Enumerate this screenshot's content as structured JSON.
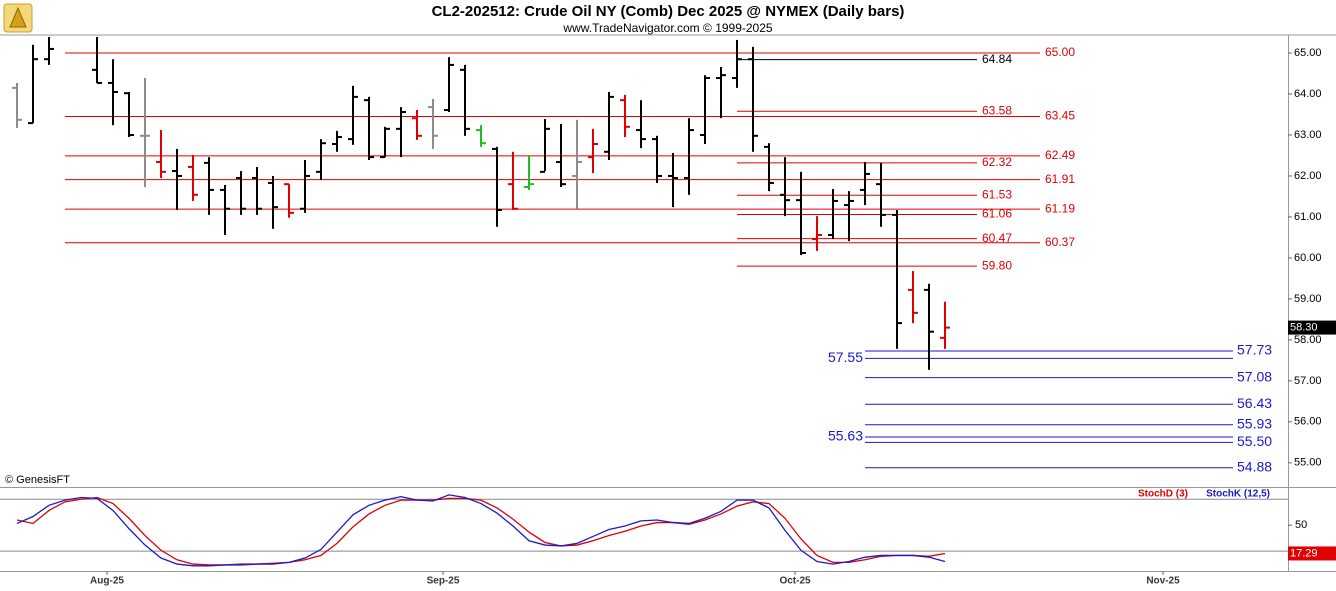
{
  "chart_data": [
    {
      "type": "ohlc",
      "title": "CL2-202512:  Crude Oil NY (Comb) Dec 2025 @ NYMEX  (Daily bars)",
      "subtitle": "www.TradeNavigator.com © 1999-2025",
      "source": "© GenesisFT",
      "xlim": [
        -1.0625,
        79.4375
      ],
      "ylim": [
        54.41,
        65.44
      ],
      "yticks": [
        {
          "value": 55,
          "label": "55.00"
        },
        {
          "value": 56,
          "label": "56.00"
        },
        {
          "value": 57,
          "label": "57.00"
        },
        {
          "value": 58,
          "label": "58.00"
        },
        {
          "value": 59,
          "label": "59.00"
        },
        {
          "value": 60,
          "label": "60.00"
        },
        {
          "value": 61,
          "label": "61.00"
        },
        {
          "value": 62,
          "label": "62.00"
        },
        {
          "value": 63,
          "label": "63.00"
        },
        {
          "value": 64,
          "label": "64.00"
        },
        {
          "value": 65,
          "label": "65.00"
        }
      ],
      "x": [
        0,
        1,
        2,
        5,
        6,
        7,
        8,
        9,
        10,
        11,
        12,
        13,
        14,
        15,
        16,
        17,
        18,
        19,
        20,
        21,
        22,
        23,
        24,
        25,
        26,
        27,
        28,
        29,
        30,
        31,
        32,
        33,
        34,
        35,
        36,
        37,
        38,
        39,
        40,
        41,
        42,
        43,
        44,
        45,
        46,
        47,
        48,
        49,
        50,
        51,
        52,
        53,
        54,
        55,
        56,
        57,
        58
      ],
      "open": [
        64.15,
        63.29,
        64.85,
        64.59,
        64.27,
        64.02,
        62.98,
        62.34,
        62.12,
        62.22,
        62.32,
        61.66,
        61.95,
        61.95,
        61.83,
        61.8,
        61.2,
        62.1,
        62.78,
        62.9,
        63.85,
        62.46,
        63.15,
        63.41,
        63.68,
        63.61,
        64.59,
        63.12,
        62.66,
        61.8,
        61.73,
        62.1,
        62.34,
        62.0,
        62.46,
        62.59,
        63.85,
        63.12,
        62.9,
        62.0,
        61.95,
        63.0,
        64.39,
        64.39,
        64.85,
        62.71,
        61.54,
        61.41,
        60.46,
        60.56,
        61.29,
        61.66,
        61.8,
        61.05,
        59.22,
        59.22,
        58.05
      ],
      "high": [
        64.27,
        65.2,
        65.39,
        65.39,
        64.85,
        64.05,
        64.39,
        63.12,
        62.66,
        62.51,
        62.46,
        61.78,
        62.12,
        62.22,
        62.0,
        61.8,
        62.39,
        62.9,
        63.1,
        64.2,
        63.93,
        63.2,
        63.68,
        63.61,
        63.88,
        64.9,
        64.71,
        63.24,
        62.71,
        62.59,
        62.51,
        63.39,
        63.27,
        63.37,
        63.15,
        64.05,
        63.98,
        63.85,
        62.98,
        62.56,
        63.41,
        64.46,
        64.66,
        65.32,
        65.15,
        62.8,
        62.46,
        62.1,
        61.02,
        61.68,
        61.63,
        62.34,
        62.32,
        61.17,
        59.68,
        59.37,
        58.93
      ],
      "low": [
        63.17,
        63.29,
        64.71,
        64.27,
        63.24,
        62.95,
        61.73,
        61.95,
        61.17,
        61.39,
        61.05,
        60.56,
        61.05,
        61.05,
        60.71,
        60.98,
        61.1,
        61.9,
        62.59,
        62.76,
        62.39,
        62.46,
        62.46,
        62.88,
        62.66,
        63.56,
        62.98,
        62.71,
        60.76,
        61.17,
        61.66,
        62.12,
        61.73,
        61.2,
        62.07,
        62.39,
        62.95,
        62.68,
        61.83,
        61.24,
        61.54,
        62.78,
        63.41,
        64.15,
        62.59,
        61.63,
        61.02,
        60.07,
        60.17,
        60.46,
        60.41,
        61.29,
        60.76,
        57.78,
        58.41,
        57.27,
        57.78
      ],
      "close": [
        63.37,
        64.85,
        65.1,
        64.27,
        64.05,
        63.0,
        62.98,
        62.1,
        62.0,
        61.54,
        61.66,
        61.2,
        61.2,
        61.2,
        61.24,
        61.1,
        62.0,
        62.8,
        62.95,
        63.93,
        62.46,
        63.15,
        63.56,
        62.98,
        62.98,
        64.71,
        63.15,
        62.8,
        61.17,
        61.2,
        61.8,
        63.15,
        61.8,
        62.34,
        62.78,
        63.93,
        63.2,
        62.9,
        62.0,
        61.95,
        63.12,
        64.39,
        64.46,
        64.85,
        62.98,
        61.83,
        61.41,
        60.12,
        60.56,
        61.39,
        61.39,
        62.05,
        61.05,
        58.41,
        58.66,
        58.2,
        58.3
      ],
      "bar_colors": [
        "#8c8c8c",
        "#000000",
        "#000000",
        "#000000",
        "#000000",
        "#000000",
        "#8c8c8c",
        "#e00000",
        "#000000",
        "#e00000",
        "#000000",
        "#000000",
        "#000000",
        "#000000",
        "#000000",
        "#e00000",
        "#000000",
        "#000000",
        "#000000",
        "#000000",
        "#000000",
        "#000000",
        "#000000",
        "#e00000",
        "#8c8c8c",
        "#000000",
        "#000000",
        "#22bb22",
        "#000000",
        "#e00000",
        "#22bb22",
        "#000000",
        "#000000",
        "#8c8c8c",
        "#e00000",
        "#000000",
        "#e00000",
        "#000000",
        "#000000",
        "#000000",
        "#000000",
        "#000000",
        "#000000",
        "#000000",
        "#000000",
        "#000000",
        "#000000",
        "#000000",
        "#e00000",
        "#000000",
        "#000000",
        "#000000",
        "#000000",
        "#000000",
        "#e00000",
        "#000000",
        "#e00000"
      ],
      "last_label": "58.30",
      "levels": {
        "red_full": [
          {
            "value": 65.0,
            "label": "65.00",
            "color": "#e00000"
          },
          {
            "value": 63.45,
            "label": "63.45",
            "color": "#e00000"
          },
          {
            "value": 62.49,
            "label": "62.49",
            "color": "#e00000"
          },
          {
            "value": 61.91,
            "label": "61.91",
            "color": "#e00000"
          },
          {
            "value": 61.19,
            "label": "61.19",
            "color": "#e00000"
          },
          {
            "value": 60.37,
            "label": "60.37",
            "color": "#e00000"
          }
        ],
        "red_recent": [
          {
            "value": 64.84,
            "label": "64.84",
            "color": "#000000"
          },
          {
            "value": 63.58,
            "label": "63.58",
            "color": "#e00000"
          },
          {
            "value": 62.32,
            "label": "62.32",
            "color": "#e00000"
          },
          {
            "value": 61.53,
            "label": "61.53",
            "color": "#e00000"
          },
          {
            "value": 61.06,
            "label": "61.06",
            "color": "#e00000"
          },
          {
            "value": 60.47,
            "label": "60.47",
            "color": "#e00000"
          },
          {
            "value": 59.8,
            "label": "59.80",
            "color": "#e00000"
          }
        ],
        "blue": [
          {
            "value": 57.73,
            "label": "57.73",
            "color": "#1a1acc"
          },
          {
            "value": 57.55,
            "label": "57.55",
            "color": "#1a1acc",
            "label_side": "left"
          },
          {
            "value": 57.08,
            "label": "57.08",
            "color": "#1a1acc"
          },
          {
            "value": 56.43,
            "label": "56.43",
            "color": "#1a1acc"
          },
          {
            "value": 55.93,
            "label": "55.93",
            "color": "#1a1acc"
          },
          {
            "value": 55.63,
            "label": "55.63",
            "color": "#1a1acc",
            "label_side": "left"
          },
          {
            "value": 55.5,
            "label": "55.50",
            "color": "#1a1acc"
          },
          {
            "value": 54.88,
            "label": "54.88",
            "color": "#1a1acc"
          }
        ]
      }
    },
    {
      "type": "line",
      "xlim": [
        -1.0625,
        79.4375
      ],
      "ylim": [
        -3,
        93
      ],
      "yticks": [
        50
      ],
      "reference_lines": [
        20,
        80
      ],
      "xticks": [
        {
          "value": 5.625,
          "label": "Aug-25"
        },
        {
          "value": 26.625,
          "label": "Sep-25"
        },
        {
          "value": 48.625,
          "label": "Oct-25"
        },
        {
          "value": 71.625,
          "label": "Nov-25"
        }
      ],
      "x": [
        0,
        1,
        2,
        3,
        4,
        5,
        6,
        7,
        8,
        9,
        10,
        11,
        12,
        13,
        14,
        15,
        16,
        17,
        18,
        19,
        20,
        21,
        22,
        23,
        24,
        25,
        26,
        27,
        28,
        29,
        30,
        31,
        32,
        33,
        34,
        35,
        36,
        37,
        38,
        39,
        40,
        41,
        42,
        43,
        44,
        45,
        46,
        47,
        48,
        49,
        50,
        51,
        52,
        53,
        54,
        55,
        56,
        57,
        58
      ],
      "series": [
        {
          "name": "StochD (3)",
          "color": "#e00000",
          "values": [
            56,
            52,
            67,
            77,
            80,
            82,
            75,
            58,
            38,
            21,
            10,
            5,
            4,
            4,
            5,
            5,
            6,
            7,
            10,
            15,
            29,
            48,
            63,
            73,
            79,
            79,
            79,
            81,
            81,
            79,
            70,
            57,
            42,
            30,
            26,
            27,
            32,
            38,
            43,
            49,
            53,
            53,
            51,
            56,
            63,
            72,
            77,
            75,
            58,
            34,
            15,
            7,
            7,
            10,
            14,
            15,
            15,
            14,
            17.29
          ],
          "value_labels": [
            null,
            null,
            null,
            null,
            null,
            null,
            null,
            null,
            null,
            null,
            null,
            null,
            null,
            null,
            null,
            null,
            null,
            null,
            null,
            null,
            null,
            null,
            null,
            null,
            null,
            null,
            null,
            null,
            null,
            null,
            null,
            null,
            null,
            null,
            null,
            null,
            null,
            null,
            null,
            null,
            null,
            null,
            null,
            null,
            null,
            null,
            null,
            null,
            null,
            null,
            null,
            null,
            null,
            null,
            null,
            null,
            null,
            null,
            "17.29"
          ]
        },
        {
          "name": "StochK (12,5)",
          "color": "#1a1acc",
          "values": [
            52,
            60,
            73,
            79,
            82,
            81,
            67,
            46,
            27,
            12,
            5,
            3,
            3,
            4,
            4,
            5,
            5,
            7,
            12,
            22,
            42,
            62,
            73,
            79,
            83,
            79,
            78,
            85,
            82,
            75,
            64,
            49,
            32,
            27,
            26,
            29,
            37,
            45,
            49,
            55,
            56,
            53,
            52,
            58,
            66,
            79,
            79,
            70,
            44,
            21,
            8,
            5,
            8,
            13,
            15,
            15,
            15,
            13,
            8
          ]
        }
      ]
    }
  ]
}
